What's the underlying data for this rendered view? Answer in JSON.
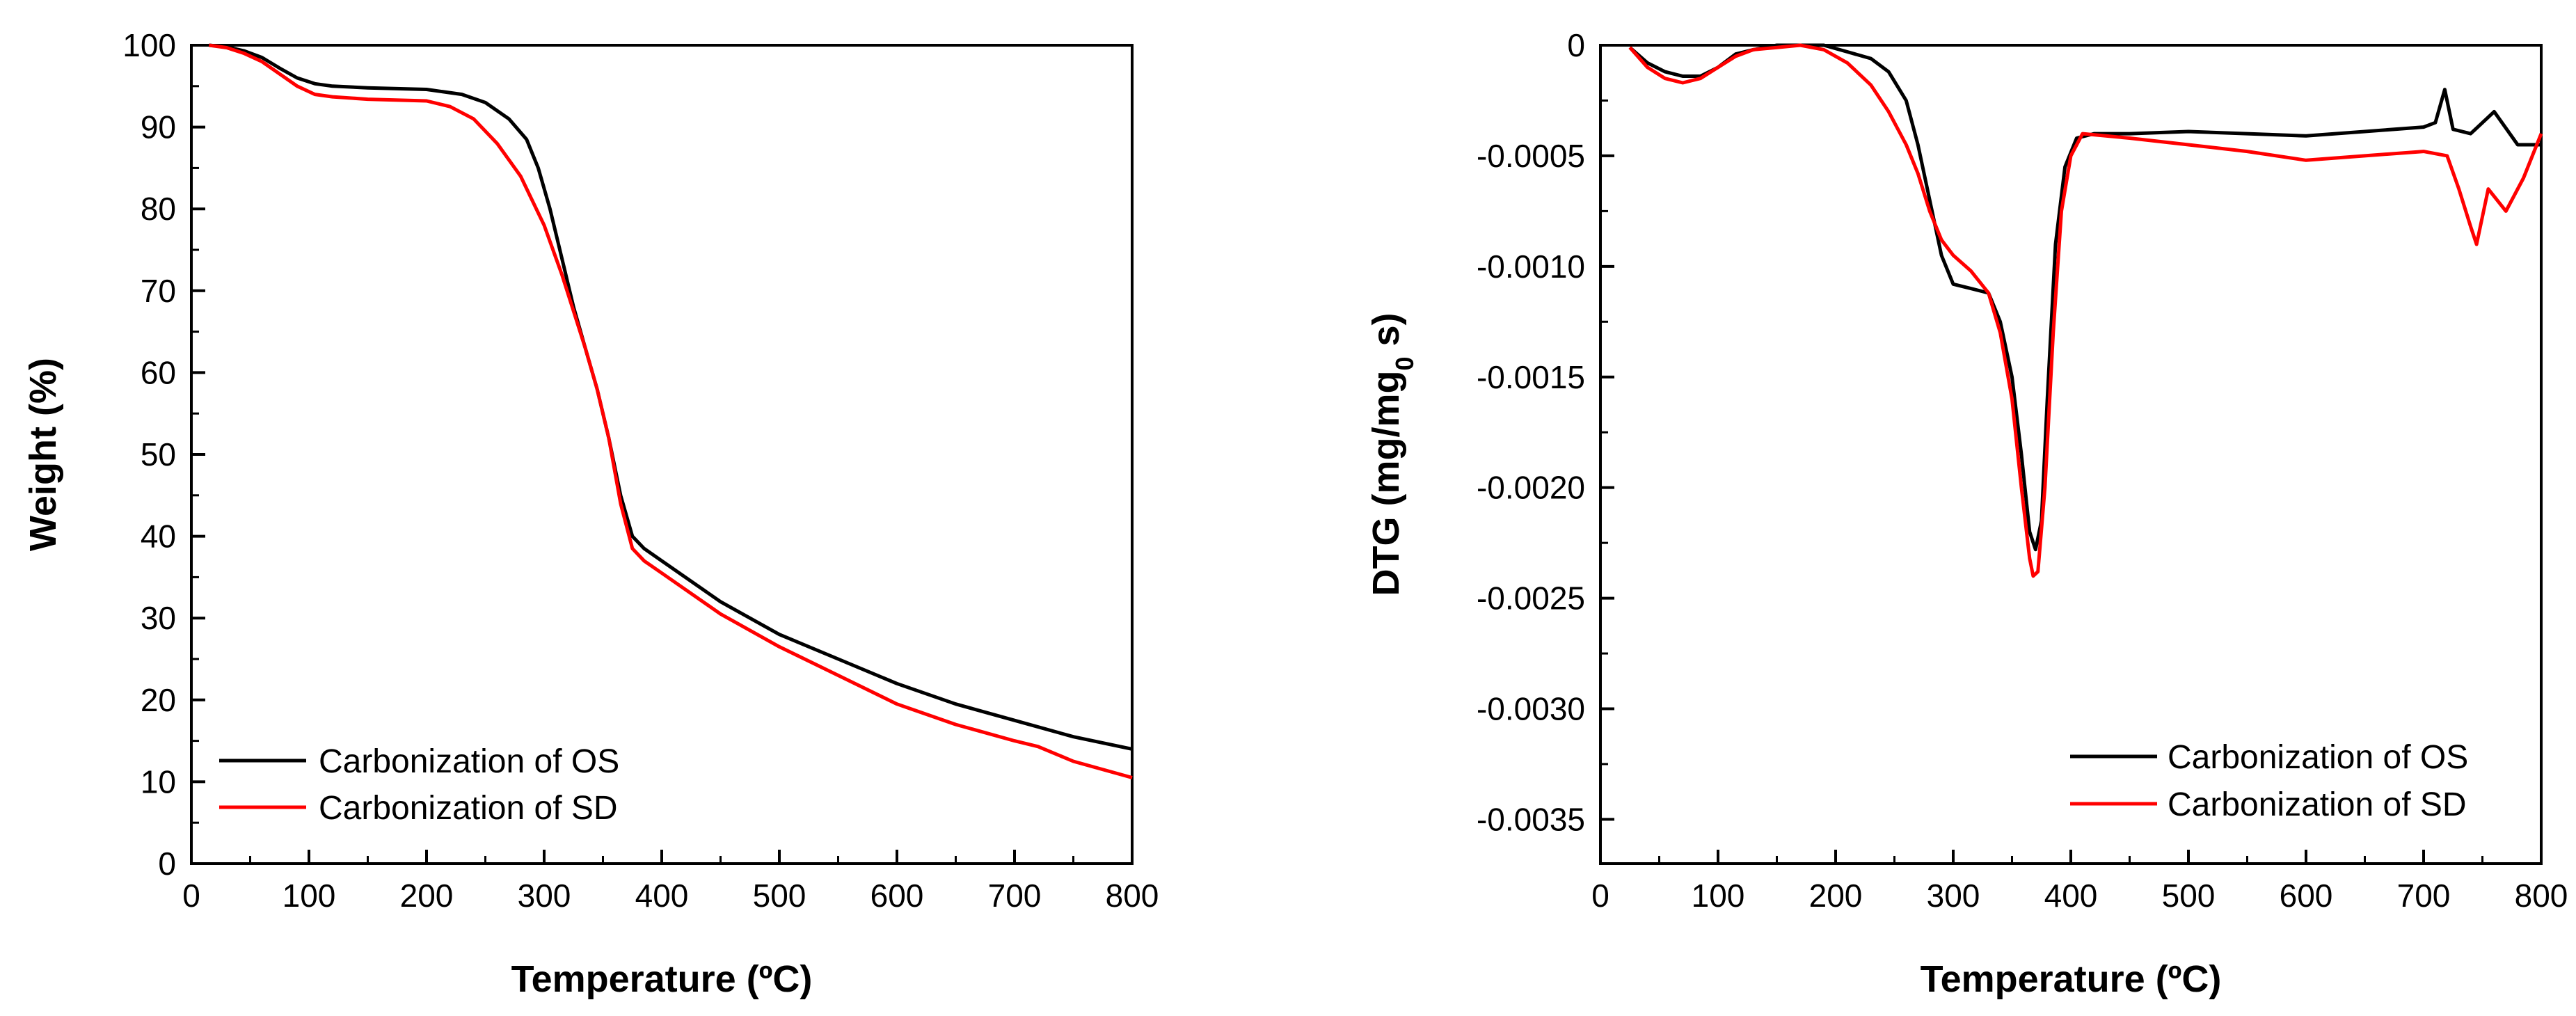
{
  "chart_data": [
    {
      "type": "line",
      "title": "",
      "xlabel": "Temperature (ºC)",
      "ylabel": "Weight (%)",
      "xlim": [
        0,
        800
      ],
      "ylim": [
        0,
        100
      ],
      "xticks": [
        "0",
        "100",
        "200",
        "300",
        "400",
        "500",
        "600",
        "700",
        "800"
      ],
      "yticks": [
        "0",
        "10",
        "20",
        "30",
        "40",
        "50",
        "60",
        "70",
        "80",
        "90",
        "100"
      ],
      "grid": false,
      "legend_position": "bottom-left",
      "series": [
        {
          "name": "Carbonization of OS",
          "color": "#000000",
          "x": [
            15,
            30,
            45,
            60,
            75,
            90,
            105,
            120,
            150,
            200,
            230,
            250,
            270,
            285,
            295,
            305,
            315,
            325,
            335,
            345,
            355,
            365,
            375,
            385,
            400,
            450,
            500,
            550,
            600,
            650,
            700,
            750,
            800
          ],
          "values": [
            100,
            99.8,
            99.3,
            98.5,
            97.2,
            96.0,
            95.3,
            95.0,
            94.8,
            94.6,
            94.0,
            93.0,
            91.0,
            88.5,
            85.0,
            80.0,
            74.0,
            68.0,
            63.0,
            58.0,
            52.0,
            45.0,
            40.0,
            38.5,
            37.0,
            32.0,
            28.0,
            25.0,
            22.0,
            19.5,
            17.5,
            15.5,
            14.0
          ]
        },
        {
          "name": "Carbonization of SD",
          "color": "#ff0000",
          "x": [
            15,
            30,
            45,
            60,
            75,
            90,
            105,
            120,
            150,
            200,
            220,
            240,
            260,
            280,
            300,
            315,
            325,
            335,
            345,
            355,
            365,
            375,
            385,
            400,
            450,
            500,
            550,
            600,
            650,
            700,
            720,
            750,
            800
          ],
          "values": [
            100,
            99.7,
            99.0,
            98.0,
            96.5,
            95.0,
            94.0,
            93.7,
            93.4,
            93.2,
            92.5,
            91.0,
            88.0,
            84.0,
            78.0,
            72.0,
            67.5,
            63.0,
            58.0,
            52.0,
            44.0,
            38.5,
            37.0,
            35.5,
            30.5,
            26.5,
            23.0,
            19.5,
            17.0,
            15.0,
            14.3,
            12.5,
            10.5
          ]
        }
      ]
    },
    {
      "type": "line",
      "title": "",
      "xlabel": "Temperature (ºC)",
      "ylabel_main": "DTG (mg/mg",
      "ylabel_sub": "0",
      "ylabel_end": " s)",
      "xlim": [
        0,
        800
      ],
      "ylim": [
        -0.0037,
        0
      ],
      "xticks": [
        "0",
        "100",
        "200",
        "300",
        "400",
        "500",
        "600",
        "700",
        "800"
      ],
      "yticks": [
        "0",
        "-0.0005",
        "-0.0010",
        "-0.0015",
        "-0.0020",
        "-0.0025",
        "-0.0030",
        "-0.0035"
      ],
      "grid": false,
      "legend_position": "bottom-right",
      "series": [
        {
          "name": "Carbonization of OS",
          "color": "#000000",
          "x": [
            25,
            40,
            55,
            70,
            85,
            100,
            115,
            130,
            150,
            170,
            190,
            210,
            230,
            245,
            260,
            270,
            280,
            290,
            300,
            315,
            330,
            340,
            350,
            358,
            365,
            370,
            375,
            380,
            387,
            395,
            405,
            420,
            450,
            500,
            550,
            600,
            650,
            700,
            710,
            718,
            725,
            740,
            760,
            780,
            800
          ],
          "values": [
            -1e-05,
            -8e-05,
            -0.00012,
            -0.00014,
            -0.00014,
            -0.0001,
            -4e-05,
            -2e-05,
            0,
            0,
            0,
            -3e-05,
            -6e-05,
            -0.00012,
            -0.00025,
            -0.00045,
            -0.0007,
            -0.00095,
            -0.00108,
            -0.0011,
            -0.00112,
            -0.00125,
            -0.0015,
            -0.00185,
            -0.0022,
            -0.00228,
            -0.00215,
            -0.0016,
            -0.0009,
            -0.00055,
            -0.00042,
            -0.0004,
            -0.0004,
            -0.00039,
            -0.0004,
            -0.00041,
            -0.00039,
            -0.00037,
            -0.00035,
            -0.0002,
            -0.00038,
            -0.0004,
            -0.0003,
            -0.00045,
            -0.00045
          ]
        },
        {
          "name": "Carbonization of SD",
          "color": "#ff0000",
          "x": [
            25,
            40,
            55,
            70,
            85,
            100,
            115,
            130,
            150,
            170,
            190,
            210,
            230,
            245,
            260,
            270,
            280,
            290,
            300,
            315,
            330,
            340,
            350,
            358,
            365,
            368,
            372,
            378,
            385,
            392,
            400,
            410,
            450,
            500,
            550,
            600,
            650,
            700,
            720,
            730,
            740,
            745,
            755,
            770,
            785,
            800
          ],
          "values": [
            -1e-05,
            -0.0001,
            -0.00015,
            -0.00017,
            -0.00015,
            -0.0001,
            -5e-05,
            -2e-05,
            -1e-05,
            0,
            -2e-05,
            -8e-05,
            -0.00018,
            -0.0003,
            -0.00045,
            -0.00058,
            -0.00075,
            -0.00088,
            -0.00095,
            -0.00102,
            -0.00112,
            -0.0013,
            -0.0016,
            -0.002,
            -0.00232,
            -0.0024,
            -0.00238,
            -0.002,
            -0.0013,
            -0.00075,
            -0.0005,
            -0.0004,
            -0.00042,
            -0.00045,
            -0.00048,
            -0.00052,
            -0.0005,
            -0.00048,
            -0.0005,
            -0.00065,
            -0.00082,
            -0.0009,
            -0.00065,
            -0.00075,
            -0.0006,
            -0.0004
          ]
        }
      ]
    }
  ]
}
